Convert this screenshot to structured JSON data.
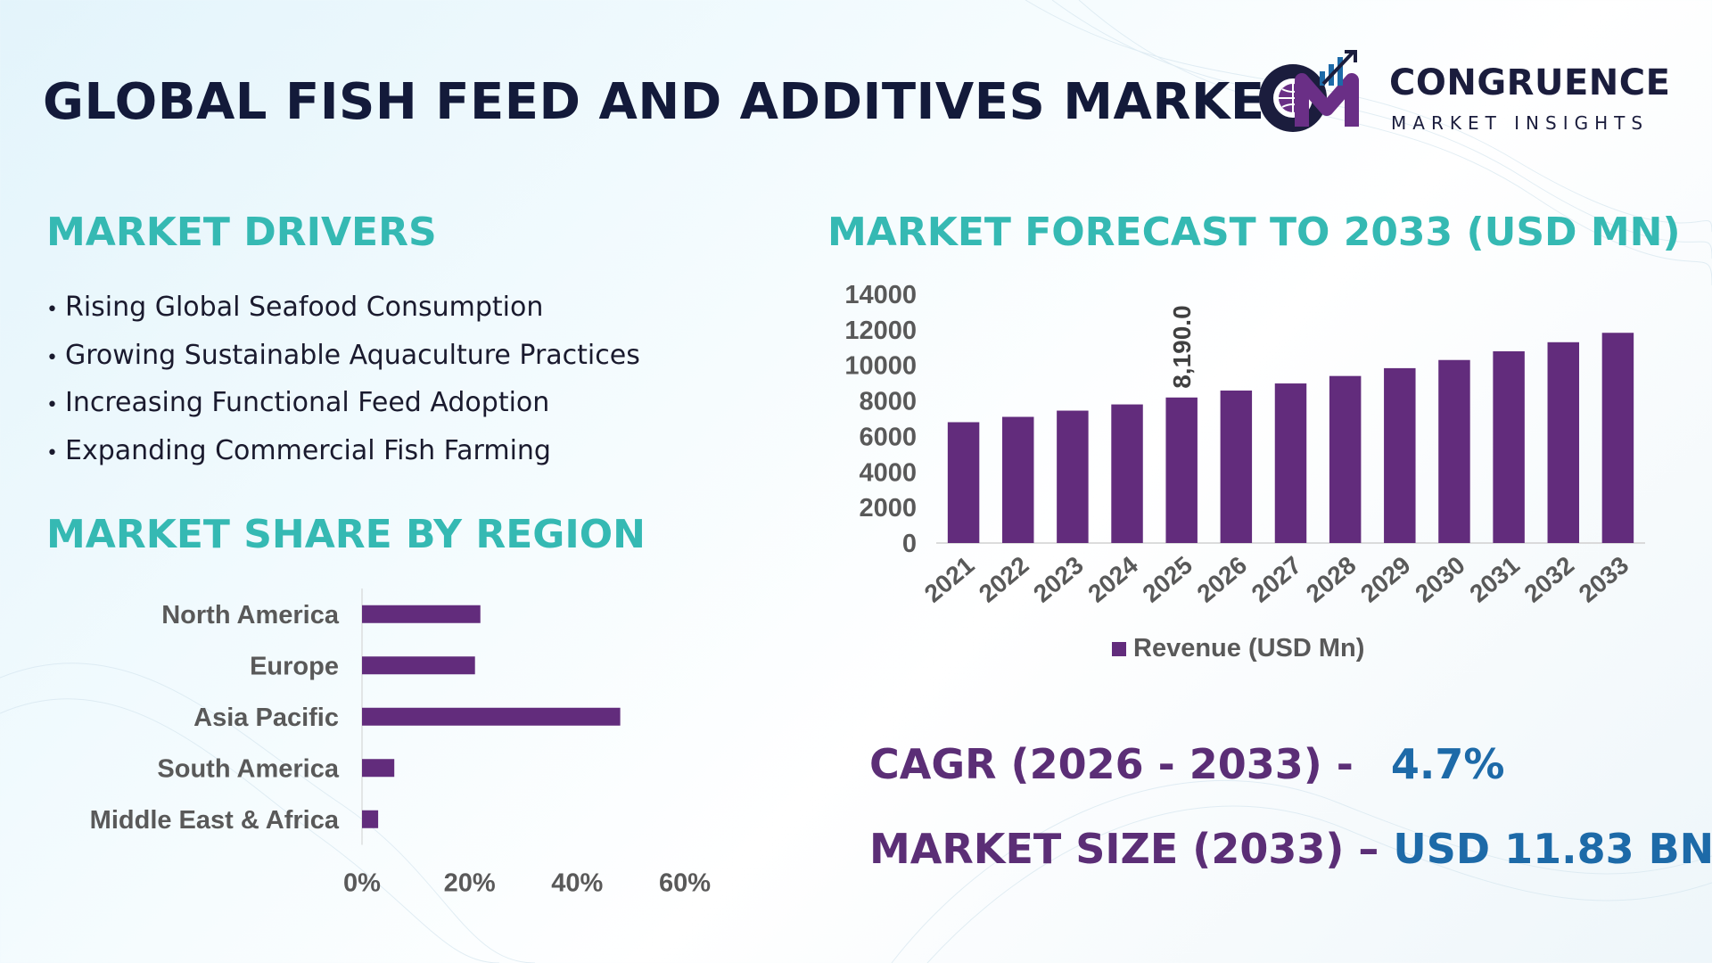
{
  "header": {
    "title": "GLOBAL FISH FEED AND ADDITIVES MARKET",
    "logo_name": "CONGRUENCE",
    "logo_tagline": "MARKET INSIGHTS"
  },
  "drivers": {
    "heading": "MARKET DRIVERS",
    "items": [
      "Rising Global Seafood Consumption",
      "Growing Sustainable Aquaculture Practices",
      "Increasing Functional Feed Adoption",
      "Expanding Commercial Fish Farming"
    ]
  },
  "region": {
    "heading": "MARKET SHARE BY REGION"
  },
  "forecast": {
    "heading": "MARKET FORECAST TO 2033 (USD MN)"
  },
  "stats": {
    "cagr_label": "CAGR (2026 - 2033) -",
    "cagr_value": "4.7%",
    "size_label": "MARKET SIZE (2033) –",
    "size_value": "USD 11.83 BN"
  },
  "colors": {
    "bar": "#622c7c",
    "heading_teal": "#35b9b3",
    "stat_label": "#5b2e76",
    "stat_value": "#1d6aa8",
    "title": "#131a3a"
  },
  "chart_data": [
    {
      "type": "bar",
      "orientation": "horizontal",
      "title": "MARKET SHARE BY REGION",
      "categories": [
        "North America",
        "Europe",
        "Asia Pacific",
        "South America",
        "Middle East & Africa"
      ],
      "values": [
        22,
        21,
        48,
        6,
        3
      ],
      "xlim": [
        0,
        60
      ],
      "xticks": [
        "0%",
        "20%",
        "40%",
        "60%"
      ],
      "grid": false
    },
    {
      "type": "bar",
      "title": "MARKET FORECAST TO 2033 (USD MN)",
      "categories": [
        "2021",
        "2022",
        "2023",
        "2024",
        "2025",
        "2026",
        "2027",
        "2028",
        "2029",
        "2030",
        "2031",
        "2032",
        "2033"
      ],
      "series": [
        {
          "name": "Revenue (USD Mn)",
          "values": [
            6800,
            7100,
            7450,
            7800,
            8190,
            8580,
            8980,
            9400,
            9840,
            10300,
            10790,
            11300,
            11830
          ]
        }
      ],
      "ylim": [
        0,
        14000
      ],
      "yticks": [
        "0",
        "2000",
        "4000",
        "6000",
        "8000",
        "10000",
        "12000",
        "14000"
      ],
      "data_labels": [
        {
          "category": "2025",
          "text": "8,190.0"
        }
      ],
      "legend": "bottom",
      "grid": false
    }
  ]
}
